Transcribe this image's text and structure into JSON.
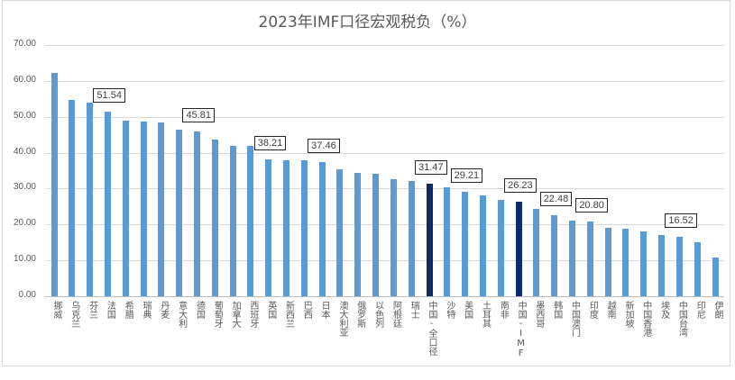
{
  "chart_data": {
    "type": "bar",
    "title": "2023年IMF口径宏观税负（%）",
    "xlabel": "",
    "ylabel": "",
    "ylim": [
      0,
      70
    ],
    "yticks": [
      "0.00",
      "10.00",
      "20.00",
      "30.00",
      "40.00",
      "50.00",
      "60.00",
      "70.00"
    ],
    "grid": true,
    "legend": null,
    "categories": [
      "挪威",
      "乌克兰",
      "芬兰",
      "法国",
      "希腊",
      "瑞典",
      "丹麦",
      "意大利",
      "德国",
      "葡萄牙",
      "加拿大",
      "西班牙",
      "英国",
      "新西兰",
      "巴西",
      "日本",
      "澳大利亚",
      "俄罗斯",
      "以色列",
      "阿根廷",
      "瑞士",
      "中国-全口径",
      "沙特",
      "美国",
      "土耳其",
      "南非",
      "中国-IMF",
      "墨西哥",
      "韩国",
      "中国澳门",
      "印度",
      "越南",
      "新加坡",
      "中国香港",
      "埃及",
      "中国台湾",
      "印尼",
      "伊朗"
    ],
    "values": [
      62.1,
      54.8,
      53.9,
      51.54,
      48.9,
      48.6,
      48.3,
      46.5,
      45.81,
      43.6,
      42.0,
      41.8,
      38.21,
      38.0,
      37.8,
      37.46,
      35.4,
      34.3,
      34.1,
      32.6,
      32.1,
      31.47,
      30.3,
      29.21,
      28.0,
      26.9,
      26.23,
      24.4,
      22.48,
      21.2,
      20.8,
      19.1,
      18.8,
      18.1,
      17.0,
      16.52,
      15.1,
      10.9
    ],
    "highlighted": [
      "中国-全口径",
      "中国-IMF"
    ],
    "data_labels": [
      {
        "category": "法国",
        "value": "51.54"
      },
      {
        "category": "德国",
        "value": "45.81"
      },
      {
        "category": "英国",
        "value": "38.21"
      },
      {
        "category": "日本",
        "value": "37.46"
      },
      {
        "category": "中国-全口径",
        "value": "31.47"
      },
      {
        "category": "美国",
        "value": "29.21"
      },
      {
        "category": "中国-IMF",
        "value": "26.23"
      },
      {
        "category": "韩国",
        "value": "22.48"
      },
      {
        "category": "印度",
        "value": "20.80"
      },
      {
        "category": "中国台湾",
        "value": "16.52"
      }
    ],
    "colors": {
      "bar": "#5b9bd5",
      "highlight": "#0d2a6b",
      "grid": "#d9d9d9",
      "text": "#595959"
    }
  }
}
